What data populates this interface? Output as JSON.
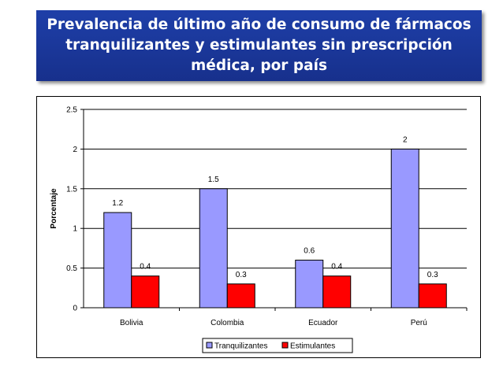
{
  "title": {
    "line1": "Prevalencia de último año de consumo de fármacos",
    "line2": "tranquilizantes y estimulantes sin prescripción",
    "line3": "médica, por país"
  },
  "chart_data": {
    "type": "bar",
    "title": "Prevalencia de último año de consumo de fármacos tranquilizantes y estimulantes sin prescripción médica, por país",
    "categories": [
      "Bolivia",
      "Colombia",
      "Ecuador",
      "Perú"
    ],
    "series": [
      {
        "name": "Tranquilizantes",
        "values": [
          1.2,
          1.5,
          0.6,
          2
        ],
        "labels": [
          "1.2",
          "1.5",
          "0.6",
          "2"
        ],
        "color": "#9999ff"
      },
      {
        "name": "Estimulantes",
        "values": [
          0.4,
          0.3,
          0.4,
          0.3
        ],
        "labels": [
          "0.4",
          "0.3",
          "0.4",
          "0.3"
        ],
        "color": "#ff0000"
      }
    ],
    "xlabel": "",
    "ylabel": "Porcentaje",
    "ylim": [
      0,
      2.5
    ],
    "yticks": [
      0,
      0.5,
      1,
      1.5,
      2,
      2.5
    ],
    "ytick_labels": [
      "0",
      "0.5",
      "1",
      "1.5",
      "2",
      "2.5"
    ],
    "grid": "horizontal",
    "legend": "bottom"
  }
}
